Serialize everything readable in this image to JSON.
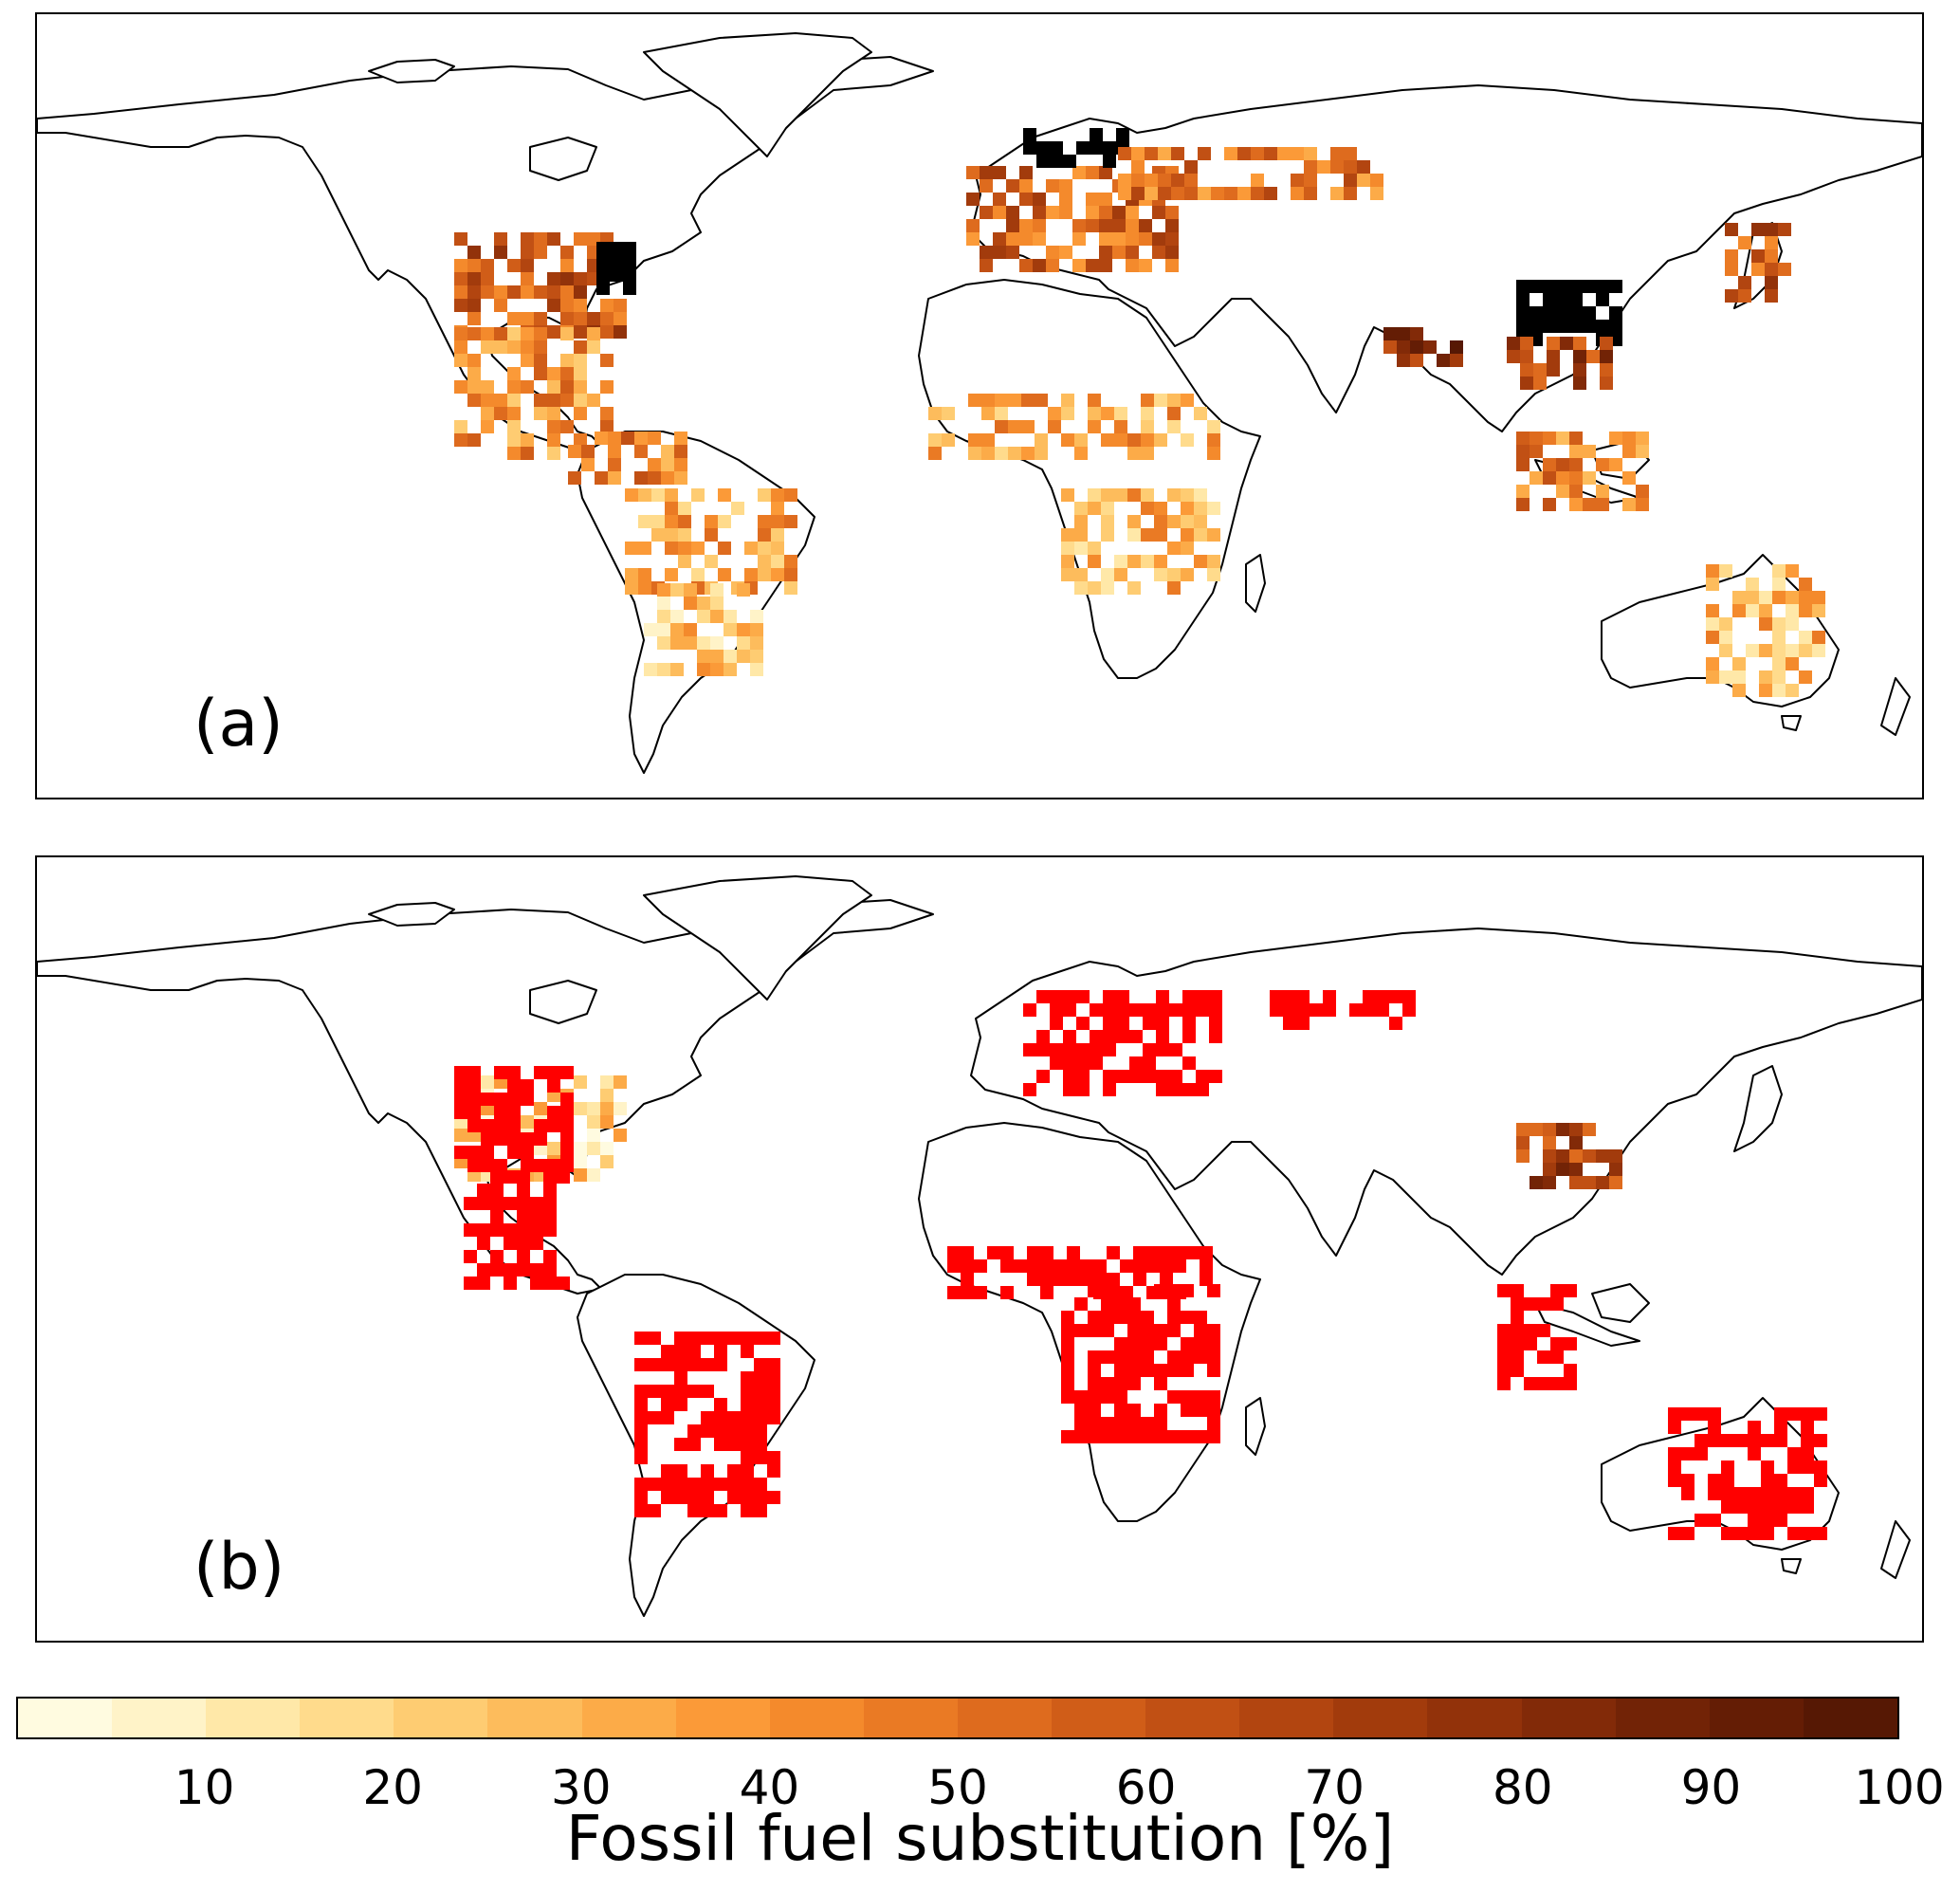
{
  "panels": [
    {
      "label": "(a)"
    },
    {
      "label": "(b)"
    }
  ],
  "colorbar": {
    "title": "Fossil fuel substitution [%]",
    "ticks": [
      "10",
      "20",
      "30",
      "40",
      "50",
      "60",
      "70",
      "80",
      "90",
      "100"
    ],
    "tick_values": [
      10,
      20,
      30,
      40,
      50,
      60,
      70,
      80,
      90,
      100
    ],
    "range": [
      0,
      100
    ],
    "colors": [
      "#fffbe0",
      "#fff3c8",
      "#ffe8a8",
      "#ffdb8c",
      "#fecc72",
      "#fdbc5c",
      "#fcab48",
      "#fb9a38",
      "#f48a2c",
      "#ea7a24",
      "#de6b1e",
      "#d05d18",
      "#c15014",
      "#b24510",
      "#a23b0c",
      "#92320a",
      "#822a08",
      "#722306",
      "#641d05",
      "#561804"
    ],
    "over_color": "#000000",
    "below_threshold_color": "#ff0000"
  },
  "map_regions": {
    "panel_a": [
      {
        "region": "eastern-us",
        "level": 60
      },
      {
        "region": "us-northeast",
        "level": 100
      },
      {
        "region": "central-america",
        "level": 40
      },
      {
        "region": "northern-south-america",
        "level": 45
      },
      {
        "region": "brazil",
        "level": 35
      },
      {
        "region": "southern-brazil",
        "level": 25
      },
      {
        "region": "western-europe",
        "level": 55
      },
      {
        "region": "scandinavia",
        "level": 100
      },
      {
        "region": "russia-band",
        "level": 50
      },
      {
        "region": "sahel",
        "level": 35
      },
      {
        "region": "southern-africa",
        "level": 30
      },
      {
        "region": "eastern-china",
        "level": 100
      },
      {
        "region": "southern-china",
        "level": 70
      },
      {
        "region": "india-northeast",
        "level": 80
      },
      {
        "region": "southeast-asia",
        "level": 45
      },
      {
        "region": "japan-korea",
        "level": 60
      },
      {
        "region": "eastern-australia",
        "level": 30
      }
    ],
    "panel_b": [
      {
        "region": "eastern-us",
        "level": 20
      },
      {
        "region": "us-red",
        "level": -1
      },
      {
        "region": "central-america-red",
        "level": -1
      },
      {
        "region": "brazil-red",
        "level": -1
      },
      {
        "region": "europe-red",
        "level": -1
      },
      {
        "region": "russia-red",
        "level": -1
      },
      {
        "region": "sahel-red",
        "level": -1
      },
      {
        "region": "southern-africa-red",
        "level": -1
      },
      {
        "region": "eastern-china",
        "level": 70
      },
      {
        "region": "southeast-asia-red",
        "level": -1
      },
      {
        "region": "australia-red",
        "level": -1
      }
    ]
  }
}
